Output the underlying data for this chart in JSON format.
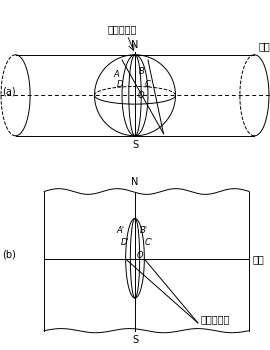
{
  "bg_color": "#ffffff",
  "line_color": "#000000",
  "label_a": "(a)",
  "label_b": "(b)",
  "text_top": "中央子午线",
  "text_muxian": "母线",
  "text_chidao": "赤道",
  "text_bottom": "中央子午线",
  "label_N": "N",
  "label_S": "S",
  "label_A": "A",
  "label_B": "B",
  "label_C": "C",
  "label_D": "D",
  "label_O": "O",
  "label_A2": "A'",
  "label_B2": "B'",
  "label_C2": "C'",
  "label_D2": "D'",
  "label_O2": "O",
  "fontsize_label": 7,
  "fontsize_small": 6,
  "lw": 0.7
}
